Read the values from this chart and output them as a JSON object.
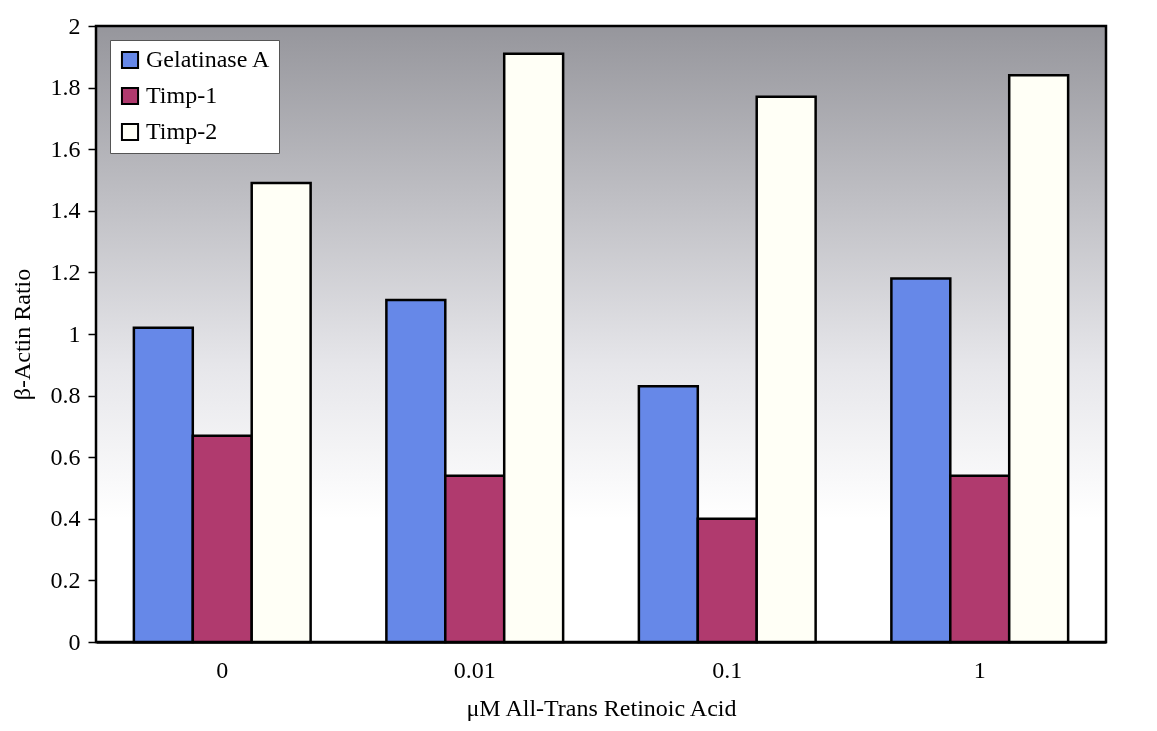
{
  "chart_data": {
    "type": "bar",
    "xlabel": "μM All-Trans Retinoic Acid",
    "ylabel": "β-Actin Ratio",
    "categories": [
      "0",
      "0.01",
      "0.1",
      "1"
    ],
    "series": [
      {
        "name": "Gelatinase A",
        "color": "#6688e8",
        "values": [
          1.02,
          1.11,
          0.83,
          1.18
        ]
      },
      {
        "name": "Timp-1",
        "color": "#b03a6e",
        "values": [
          0.67,
          0.54,
          0.4,
          0.54
        ]
      },
      {
        "name": "Timp-2",
        "color": "#fffff6",
        "values": [
          1.49,
          1.91,
          1.77,
          1.84
        ]
      }
    ],
    "ylim": [
      0,
      2
    ],
    "yticks": [
      0,
      0.2,
      0.4,
      0.6,
      0.8,
      1,
      1.2,
      1.4,
      1.6,
      1.8,
      2
    ],
    "grid": false,
    "legend": "top left"
  }
}
